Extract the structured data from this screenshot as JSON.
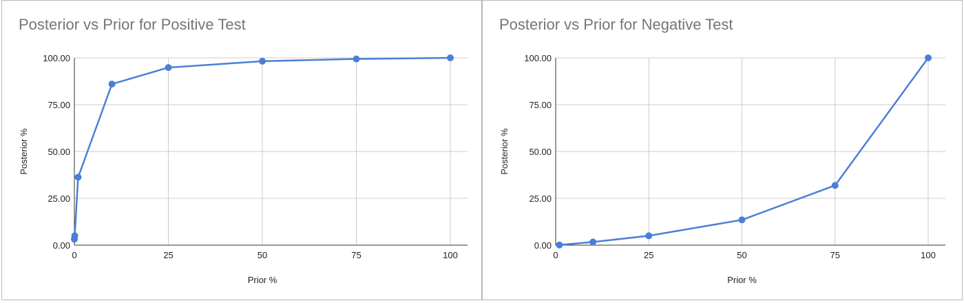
{
  "chart_data": [
    {
      "type": "line",
      "title": "Posterior vs Prior for Positive Test",
      "xlabel": "Prior %",
      "ylabel": "Posterior %",
      "xlim": [
        0,
        100
      ],
      "ylim": [
        0,
        100
      ],
      "xticks": [
        "0",
        "25",
        "50",
        "75",
        "100"
      ],
      "yticks": [
        "0.00",
        "25.00",
        "50.00",
        "75.00",
        "100.00"
      ],
      "grid": true,
      "color": "#4a7fd6",
      "series": [
        {
          "x": [
            0.01,
            0.1,
            1,
            10,
            25,
            50,
            75,
            100
          ],
          "y": [
            3.2,
            5.0,
            36.3,
            86.0,
            94.8,
            98.2,
            99.4,
            100
          ]
        }
      ]
    },
    {
      "type": "line",
      "title": "Posterior vs Prior for Negative Test",
      "xlabel": "Prior %",
      "ylabel": "Posterior %",
      "xlim": [
        0,
        100
      ],
      "ylim": [
        0,
        100
      ],
      "xticks": [
        "0",
        "25",
        "50",
        "75",
        "100"
      ],
      "yticks": [
        "0.00",
        "25.00",
        "50.00",
        "75.00",
        "100.00"
      ],
      "grid": true,
      "color": "#4a7fd6",
      "series": [
        {
          "x": [
            1,
            10,
            25,
            50,
            75,
            100
          ],
          "y": [
            0.1,
            1.7,
            5.0,
            13.5,
            31.9,
            100
          ]
        }
      ]
    }
  ]
}
